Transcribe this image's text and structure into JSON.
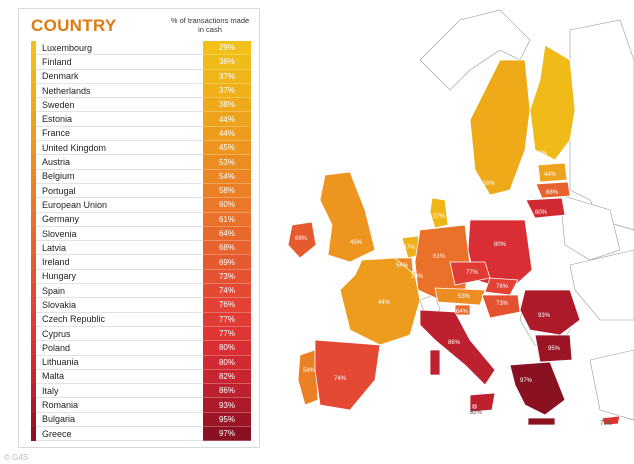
{
  "table": {
    "title": "COUNTRY",
    "header": "% of transactions made in cash",
    "rows": [
      {
        "country": "Luxembourg",
        "value": "29%",
        "color": "#f1c11a"
      },
      {
        "country": "Finland",
        "value": "36%",
        "color": "#f0bb19"
      },
      {
        "country": "Denmark",
        "value": "37%",
        "color": "#f0b619"
      },
      {
        "country": "Netherlands",
        "value": "37%",
        "color": "#efb019"
      },
      {
        "country": "Sweden",
        "value": "38%",
        "color": "#efaa1a"
      },
      {
        "country": "Estonia",
        "value": "44%",
        "color": "#eea31c"
      },
      {
        "country": "France",
        "value": "44%",
        "color": "#ee9c1d"
      },
      {
        "country": "United Kingdom",
        "value": "45%",
        "color": "#ed951f"
      },
      {
        "country": "Austria",
        "value": "53%",
        "color": "#ec8d22"
      },
      {
        "country": "Belgium",
        "value": "54%",
        "color": "#ec8624"
      },
      {
        "country": "Portugal",
        "value": "58%",
        "color": "#eb7f26"
      },
      {
        "country": "European Union",
        "value": "60%",
        "color": "#ea7828"
      },
      {
        "country": "Germany",
        "value": "61%",
        "color": "#e9712a"
      },
      {
        "country": "Slovenia",
        "value": "64%",
        "color": "#e8692c"
      },
      {
        "country": "Latvia",
        "value": "68%",
        "color": "#e7622e"
      },
      {
        "country": "Ireland",
        "value": "69%",
        "color": "#e65a30"
      },
      {
        "country": "Hungary",
        "value": "73%",
        "color": "#e55232"
      },
      {
        "country": "Spain",
        "value": "74%",
        "color": "#e44a33"
      },
      {
        "country": "Slovakia",
        "value": "76%",
        "color": "#e34234"
      },
      {
        "country": "Czech Republic",
        "value": "77%",
        "color": "#e13b35"
      },
      {
        "country": "Cyprus",
        "value": "77%",
        "color": "#de3535"
      },
      {
        "country": "Poland",
        "value": "80%",
        "color": "#d92f34"
      },
      {
        "country": "Lithuania",
        "value": "80%",
        "color": "#d22a33"
      },
      {
        "country": "Malta",
        "value": "82%",
        "color": "#c92531"
      },
      {
        "country": "Italy",
        "value": "86%",
        "color": "#bd202e"
      },
      {
        "country": "Romania",
        "value": "93%",
        "color": "#ae1a2a"
      },
      {
        "country": "Bulgaria",
        "value": "95%",
        "color": "#9c1526"
      },
      {
        "country": "Greece",
        "value": "97%",
        "color": "#8a1122"
      }
    ]
  },
  "credit": "© G4S",
  "map": {
    "labels": {
      "finland": "36%",
      "sweden": "38%",
      "estonia": "44%",
      "latvia": "68%",
      "lithuania": "80%",
      "denmark": "37%",
      "ireland": "69%",
      "uk": "45%",
      "netherlands": "37%",
      "belgium": "54%",
      "luxembourg": "29%",
      "germany": "61%",
      "poland": "80%",
      "czech": "77%",
      "slovakia": "76%",
      "austria": "53%",
      "hungary": "73%",
      "slovenia": "64%",
      "france": "44%",
      "portugal": "58%",
      "spain": "74%",
      "italy": "86%",
      "malta": "82%",
      "romania": "93%",
      "bulgaria": "95%",
      "greece": "97%",
      "cyprus": "77%"
    }
  }
}
